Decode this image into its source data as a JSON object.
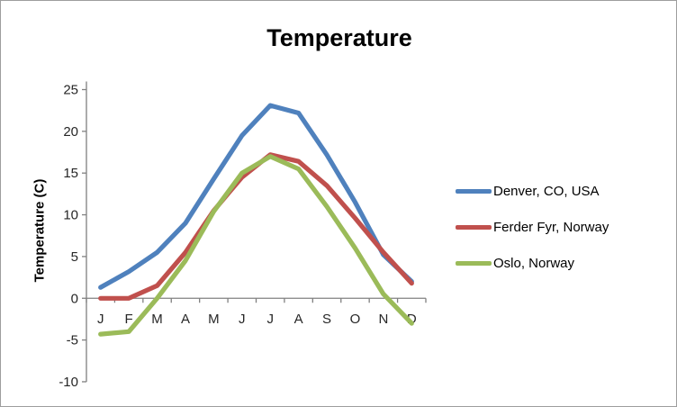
{
  "chart_data": {
    "type": "line",
    "title": "Temperature",
    "ylabel": "Temperature (C)",
    "xlabel": "",
    "categories": [
      "J",
      "F",
      "M",
      "A",
      "M",
      "J",
      "J",
      "A",
      "S",
      "O",
      "N",
      "D"
    ],
    "ylim": [
      -10,
      25
    ],
    "ytick_step": 5,
    "yticks": [
      -10,
      -5,
      0,
      5,
      10,
      15,
      20,
      25
    ],
    "grid": false,
    "legend_position": "right",
    "series": [
      {
        "name": "Denver, CO, USA",
        "color": "#4F81BD",
        "values": [
          1.3,
          3.2,
          5.5,
          9.0,
          14.3,
          19.5,
          23.1,
          22.2,
          17.2,
          11.5,
          5.2,
          2.0
        ]
      },
      {
        "name": "Ferder Fyr, Norway",
        "color": "#C0504D",
        "values": [
          0.0,
          0.0,
          1.5,
          5.5,
          10.5,
          14.5,
          17.2,
          16.4,
          13.5,
          9.6,
          5.5,
          1.8
        ]
      },
      {
        "name": "Oslo, Norway",
        "color": "#9BBB59",
        "values": [
          -4.3,
          -4.0,
          0.0,
          4.5,
          10.4,
          15.0,
          17.0,
          15.5,
          11.0,
          6.0,
          0.5,
          -3.0
        ]
      }
    ]
  }
}
